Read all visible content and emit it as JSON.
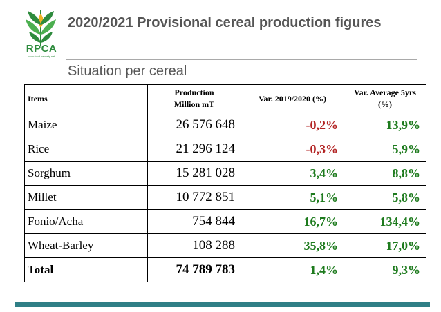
{
  "logo": {
    "name": "RPCA",
    "tagline": "www.food-security.net"
  },
  "title": "2020/2021 Provisional cereal production figures",
  "subtitle": "Situation per cereal",
  "colors": {
    "negative": "#b22222",
    "positive": "#1e7b1e",
    "bar": "#2f7f86",
    "logo": "#2e8b3d"
  },
  "table": {
    "headers": {
      "items": "Items",
      "production_line1": "Production",
      "production_line2": "Million mT",
      "var_year": "Var. 2019/2020 (%)",
      "var_avg_line1": "Var. Average 5yrs",
      "var_avg_line2": "(%)"
    },
    "rows": [
      {
        "item": "Maize",
        "production": "26 576 648",
        "var_year": "-0,2%",
        "var_avg": "13,9%"
      },
      {
        "item": "Rice",
        "production": "21 296 124",
        "var_year": "-0,3%",
        "var_avg": "5,9%"
      },
      {
        "item": "Sorghum",
        "production": "15 281 028",
        "var_year": "3,4%",
        "var_avg": "8,8%"
      },
      {
        "item": "Millet",
        "production": "10 772 851",
        "var_year": "5,1%",
        "var_avg": "5,8%"
      },
      {
        "item": "Fonio/Acha",
        "production": "754 844",
        "var_year": "16,7%",
        "var_avg": "134,4%"
      },
      {
        "item": "Wheat-Barley",
        "production": "108 288",
        "var_year": "35,8%",
        "var_avg": "17,0%"
      }
    ],
    "total": {
      "item": "Total",
      "production": "74 789 783",
      "var_year": "1,4%",
      "var_avg": "9,3%"
    }
  }
}
